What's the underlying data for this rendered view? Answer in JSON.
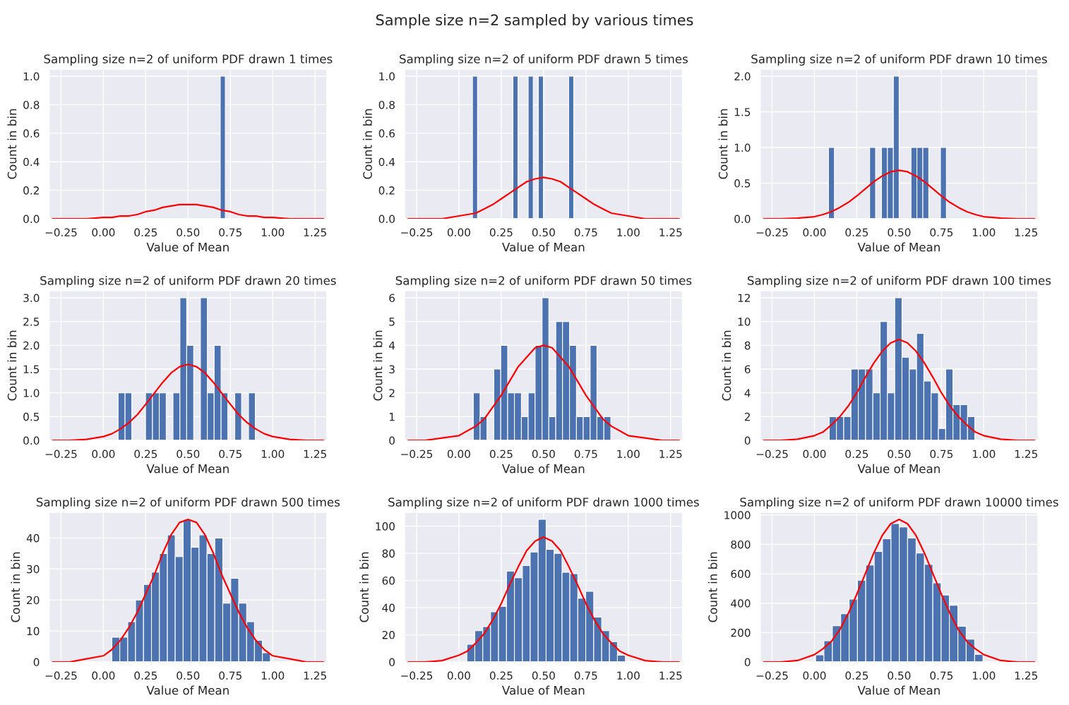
{
  "chart_data": [
    {
      "type": "histogram",
      "title": "Sampling size n=2 of uniform PDF drawn 1 times",
      "xlabel": "Value of Mean",
      "ylabel": "Count in bin",
      "annotations": [
        "Sample size n=2 sampled by various times"
      ],
      "grid": true,
      "color": "#4c72b0",
      "bins": [
        0.69,
        0.72
      ],
      "values": [
        1
      ],
      "series": [
        {
          "type": "line",
          "color": "#ff0000",
          "x": [
            -0.3,
            -0.2,
            -0.1,
            0,
            0.05,
            0.1,
            0.15,
            0.2,
            0.25,
            0.3,
            0.35,
            0.4,
            0.45,
            0.5,
            0.55,
            0.6,
            0.65,
            0.7,
            0.75,
            0.8,
            0.85,
            0.9,
            0.95,
            1,
            1.1,
            1.2,
            1.3
          ],
          "values": [
            0,
            0,
            0,
            0.01,
            0.01,
            0.02,
            0.02,
            0.03,
            0.05,
            0.06,
            0.08,
            0.09,
            0.1,
            0.1,
            0.1,
            0.09,
            0.08,
            0.06,
            0.05,
            0.03,
            0.02,
            0.02,
            0.01,
            0.01,
            0,
            0,
            0
          ]
        }
      ],
      "xlim": [
        -0.32,
        1.32
      ],
      "xticks": [
        {
          "value": -0.25,
          "label": "−0.25"
        },
        {
          "value": 0,
          "label": "0.00"
        },
        {
          "value": 0.25,
          "label": "0.25"
        },
        {
          "value": 0.5,
          "label": "0.50"
        },
        {
          "value": 0.75,
          "label": "0.75"
        },
        {
          "value": 1,
          "label": "1.00"
        },
        {
          "value": 1.25,
          "label": "1.25"
        }
      ],
      "ylim": [
        0,
        1.05
      ],
      "yticks": [
        {
          "value": 0,
          "label": "0.0"
        },
        {
          "value": 0.2,
          "label": "0.2"
        },
        {
          "value": 0.4,
          "label": "0.4"
        },
        {
          "value": 0.6,
          "label": "0.6"
        },
        {
          "value": 0.8,
          "label": "0.8"
        },
        {
          "value": 1,
          "label": "1.0"
        }
      ]
    },
    {
      "type": "histogram",
      "title": "Sampling size n=2 of uniform PDF drawn 5 times",
      "xlabel": "Value of Mean",
      "ylabel": "Count in bin",
      "grid": true,
      "color": "#4c72b0",
      "bins": [
        0.08,
        0.11,
        0.14,
        0.17,
        0.2,
        0.23,
        0.259,
        0.289,
        0.319,
        0.349,
        0.379,
        0.409,
        0.439,
        0.469,
        0.499,
        0.529,
        0.558,
        0.588,
        0.618,
        0.648,
        0.678
      ],
      "values": [
        1,
        0,
        0,
        0,
        0,
        0,
        0,
        0,
        1,
        0,
        0,
        1,
        0,
        1,
        0,
        0,
        0,
        0,
        0,
        1
      ],
      "series": [
        {
          "type": "line",
          "color": "#ff0000",
          "x": [
            -0.3,
            -0.2,
            -0.1,
            0,
            0.05,
            0.1,
            0.15,
            0.2,
            0.25,
            0.3,
            0.35,
            0.4,
            0.45,
            0.5,
            0.55,
            0.6,
            0.65,
            0.7,
            0.75,
            0.8,
            0.85,
            0.9,
            0.95,
            1,
            1.1,
            1.2,
            1.3
          ],
          "values": [
            0,
            0,
            0,
            0.02,
            0.03,
            0.04,
            0.07,
            0.1,
            0.14,
            0.18,
            0.22,
            0.26,
            0.28,
            0.29,
            0.28,
            0.26,
            0.22,
            0.18,
            0.14,
            0.1,
            0.07,
            0.04,
            0.03,
            0.02,
            0,
            0,
            0
          ]
        }
      ],
      "xlim": [
        -0.32,
        1.32
      ],
      "xticks": [
        {
          "value": -0.25,
          "label": "−0.25"
        },
        {
          "value": 0,
          "label": "0.00"
        },
        {
          "value": 0.25,
          "label": "0.25"
        },
        {
          "value": 0.5,
          "label": "0.50"
        },
        {
          "value": 0.75,
          "label": "0.75"
        },
        {
          "value": 1,
          "label": "1.00"
        },
        {
          "value": 1.25,
          "label": "1.25"
        }
      ],
      "ylim": [
        0,
        1.05
      ],
      "yticks": [
        {
          "value": 0,
          "label": "0.0"
        },
        {
          "value": 0.2,
          "label": "0.2"
        },
        {
          "value": 0.4,
          "label": "0.4"
        },
        {
          "value": 0.6,
          "label": "0.6"
        },
        {
          "value": 0.8,
          "label": "0.8"
        },
        {
          "value": 1,
          "label": "1.0"
        }
      ]
    },
    {
      "type": "histogram",
      "title": "Sampling size n=2 of uniform PDF drawn 10 times",
      "xlabel": "Value of Mean",
      "ylabel": "Count in bin",
      "grid": true,
      "color": "#4c72b0",
      "bins": [
        0.083,
        0.118,
        0.152,
        0.187,
        0.222,
        0.257,
        0.292,
        0.326,
        0.361,
        0.396,
        0.431,
        0.466,
        0.5,
        0.535,
        0.57,
        0.605,
        0.64,
        0.675,
        0.709,
        0.744,
        0.779
      ],
      "values": [
        1,
        0,
        0,
        0,
        0,
        0,
        0,
        1,
        0,
        1,
        1,
        2,
        0,
        0,
        1,
        1,
        1,
        0,
        0,
        1
      ],
      "series": [
        {
          "type": "line",
          "color": "#ff0000",
          "x": [
            -0.3,
            -0.2,
            -0.1,
            0,
            0.05,
            0.1,
            0.15,
            0.2,
            0.25,
            0.3,
            0.35,
            0.4,
            0.45,
            0.5,
            0.55,
            0.6,
            0.65,
            0.7,
            0.75,
            0.8,
            0.85,
            0.9,
            0.95,
            1,
            1.1,
            1.2,
            1.3
          ],
          "values": [
            0,
            0,
            0.01,
            0.03,
            0.06,
            0.1,
            0.16,
            0.23,
            0.32,
            0.42,
            0.52,
            0.6,
            0.66,
            0.68,
            0.66,
            0.6,
            0.52,
            0.42,
            0.32,
            0.23,
            0.16,
            0.1,
            0.06,
            0.03,
            0.01,
            0,
            0
          ]
        }
      ],
      "xlim": [
        -0.32,
        1.32
      ],
      "xticks": [
        {
          "value": -0.25,
          "label": "−0.25"
        },
        {
          "value": 0,
          "label": "0.00"
        },
        {
          "value": 0.25,
          "label": "0.25"
        },
        {
          "value": 0.5,
          "label": "0.50"
        },
        {
          "value": 0.75,
          "label": "0.75"
        },
        {
          "value": 1,
          "label": "1.00"
        },
        {
          "value": 1.25,
          "label": "1.25"
        }
      ],
      "ylim": [
        0,
        2.1
      ],
      "yticks": [
        {
          "value": 0,
          "label": "0.0"
        },
        {
          "value": 0.5,
          "label": "0.5"
        },
        {
          "value": 1,
          "label": "1.0"
        },
        {
          "value": 1.5,
          "label": "1.5"
        },
        {
          "value": 2,
          "label": "2.0"
        }
      ]
    },
    {
      "type": "histogram",
      "title": "Sampling size n=2 of uniform PDF drawn 20 times",
      "xlabel": "Value of Mean",
      "ylabel": "Count in bin",
      "grid": true,
      "color": "#4c72b0",
      "bins": [
        0.087,
        0.128,
        0.168,
        0.209,
        0.249,
        0.29,
        0.33,
        0.371,
        0.411,
        0.452,
        0.492,
        0.533,
        0.573,
        0.614,
        0.654,
        0.695,
        0.735,
        0.776,
        0.816,
        0.857,
        0.897
      ],
      "values": [
        1,
        1,
        0,
        0,
        1,
        1,
        1,
        0,
        1,
        3,
        2,
        0,
        3,
        1,
        2,
        1,
        0,
        1,
        0,
        1
      ],
      "series": [
        {
          "type": "line",
          "color": "#ff0000",
          "x": [
            -0.3,
            -0.2,
            -0.1,
            0,
            0.05,
            0.1,
            0.15,
            0.2,
            0.25,
            0.3,
            0.35,
            0.4,
            0.45,
            0.5,
            0.55,
            0.6,
            0.65,
            0.7,
            0.75,
            0.8,
            0.85,
            0.9,
            0.95,
            1,
            1.1,
            1.2,
            1.3
          ],
          "values": [
            0,
            0,
            0.02,
            0.08,
            0.14,
            0.24,
            0.37,
            0.54,
            0.76,
            0.99,
            1.22,
            1.42,
            1.55,
            1.6,
            1.55,
            1.42,
            1.22,
            0.99,
            0.76,
            0.54,
            0.37,
            0.24,
            0.14,
            0.08,
            0.02,
            0,
            0
          ]
        }
      ],
      "xlim": [
        -0.32,
        1.32
      ],
      "xticks": [
        {
          "value": -0.25,
          "label": "−0.25"
        },
        {
          "value": 0,
          "label": "0.00"
        },
        {
          "value": 0.25,
          "label": "0.25"
        },
        {
          "value": 0.5,
          "label": "0.50"
        },
        {
          "value": 0.75,
          "label": "0.75"
        },
        {
          "value": 1,
          "label": "1.00"
        },
        {
          "value": 1.25,
          "label": "1.25"
        }
      ],
      "ylim": [
        0,
        3.15
      ],
      "yticks": [
        {
          "value": 0,
          "label": "0.0"
        },
        {
          "value": 0.5,
          "label": "0.5"
        },
        {
          "value": 1,
          "label": "1.0"
        },
        {
          "value": 1.5,
          "label": "1.5"
        },
        {
          "value": 2,
          "label": "2.0"
        },
        {
          "value": 2.5,
          "label": "2.5"
        },
        {
          "value": 3,
          "label": "3.0"
        }
      ]
    },
    {
      "type": "histogram",
      "title": "Sampling size n=2 of uniform PDF drawn 50 times",
      "xlabel": "Value of Mean",
      "ylabel": "Count in bin",
      "grid": true,
      "color": "#4c72b0",
      "bins": [
        0.085,
        0.125,
        0.166,
        0.206,
        0.247,
        0.288,
        0.328,
        0.369,
        0.409,
        0.45,
        0.491,
        0.531,
        0.572,
        0.612,
        0.653,
        0.694,
        0.734,
        0.775,
        0.815,
        0.856,
        0.897
      ],
      "values": [
        2,
        1,
        0,
        3,
        4,
        2,
        2,
        1,
        2,
        4,
        6,
        1,
        5,
        5,
        4,
        1,
        1,
        4,
        1,
        1
      ],
      "series": [
        {
          "type": "line",
          "color": "#ff0000",
          "x": [
            -0.3,
            -0.2,
            -0.1,
            0,
            0.05,
            0.1,
            0.15,
            0.2,
            0.25,
            0.3,
            0.35,
            0.4,
            0.45,
            0.5,
            0.55,
            0.6,
            0.65,
            0.7,
            0.75,
            0.8,
            0.85,
            0.9,
            0.95,
            1,
            1.1,
            1.2,
            1.3
          ],
          "values": [
            0,
            0,
            0.1,
            0.2,
            0.4,
            0.6,
            0.9,
            1.4,
            1.9,
            2.5,
            3.1,
            3.5,
            3.9,
            4,
            3.9,
            3.5,
            3.1,
            2.5,
            1.9,
            1.4,
            0.9,
            0.6,
            0.4,
            0.2,
            0.1,
            0,
            0
          ]
        }
      ],
      "xlim": [
        -0.32,
        1.32
      ],
      "xticks": [
        {
          "value": -0.25,
          "label": "−0.25"
        },
        {
          "value": 0,
          "label": "0.00"
        },
        {
          "value": 0.25,
          "label": "0.25"
        },
        {
          "value": 0.5,
          "label": "0.50"
        },
        {
          "value": 0.75,
          "label": "0.75"
        },
        {
          "value": 1,
          "label": "1.00"
        },
        {
          "value": 1.25,
          "label": "1.25"
        }
      ],
      "ylim": [
        0,
        6.3
      ],
      "yticks": [
        0,
        1,
        2,
        3,
        4,
        5,
        6
      ]
    },
    {
      "type": "histogram",
      "title": "Sampling size n=2 of uniform PDF drawn 100 times",
      "xlabel": "Value of Mean",
      "ylabel": "Count in bin",
      "grid": true,
      "color": "#4c72b0",
      "bins": [
        0.087,
        0.13,
        0.173,
        0.216,
        0.259,
        0.302,
        0.345,
        0.388,
        0.431,
        0.474,
        0.517,
        0.56,
        0.603,
        0.646,
        0.689,
        0.732,
        0.775,
        0.818,
        0.861,
        0.904,
        0.947
      ],
      "values": [
        2,
        2,
        2,
        6,
        6,
        6,
        4,
        10,
        4,
        12,
        7,
        6,
        9,
        5,
        4,
        1,
        6,
        3,
        3,
        2
      ],
      "series": [
        {
          "type": "line",
          "color": "#ff0000",
          "x": [
            -0.3,
            -0.2,
            -0.1,
            0,
            0.05,
            0.1,
            0.15,
            0.2,
            0.25,
            0.3,
            0.35,
            0.4,
            0.45,
            0.5,
            0.55,
            0.6,
            0.65,
            0.7,
            0.75,
            0.8,
            0.85,
            0.9,
            0.95,
            1,
            1.1,
            1.2,
            1.3
          ],
          "values": [
            0,
            0,
            0.1,
            0.4,
            0.7,
            1.3,
            2,
            2.9,
            4,
            5.3,
            6.5,
            7.5,
            8.2,
            8.5,
            8.2,
            7.5,
            6.5,
            5.3,
            4,
            2.9,
            2,
            1.3,
            0.7,
            0.4,
            0.1,
            0,
            0
          ]
        }
      ],
      "xlim": [
        -0.32,
        1.32
      ],
      "xticks": [
        {
          "value": -0.25,
          "label": "−0.25"
        },
        {
          "value": 0,
          "label": "0.00"
        },
        {
          "value": 0.25,
          "label": "0.25"
        },
        {
          "value": 0.5,
          "label": "0.50"
        },
        {
          "value": 0.75,
          "label": "0.75"
        },
        {
          "value": 1,
          "label": "1.00"
        },
        {
          "value": 1.25,
          "label": "1.25"
        }
      ],
      "ylim": [
        0,
        12.6
      ],
      "yticks": [
        0,
        2,
        4,
        6,
        8,
        10,
        12
      ]
    },
    {
      "type": "histogram",
      "title": "Sampling size n=2 of uniform PDF drawn 500 times",
      "xlabel": "Value of Mean",
      "ylabel": "Count in bin",
      "grid": true,
      "color": "#4c72b0",
      "bins": [
        0.05,
        0.097,
        0.144,
        0.19,
        0.237,
        0.284,
        0.331,
        0.378,
        0.424,
        0.471,
        0.518,
        0.565,
        0.612,
        0.658,
        0.705,
        0.752,
        0.799,
        0.846,
        0.892,
        0.939,
        0.986
      ],
      "values": [
        8,
        8,
        13,
        20,
        25,
        29,
        35,
        41,
        34,
        46,
        37,
        41,
        35,
        40,
        19,
        27,
        19,
        13,
        7,
        3
      ],
      "series": [
        {
          "type": "line",
          "color": "#ff0000",
          "x": [
            -0.3,
            -0.2,
            -0.1,
            0,
            0.05,
            0.1,
            0.15,
            0.2,
            0.25,
            0.3,
            0.35,
            0.4,
            0.45,
            0.5,
            0.55,
            0.6,
            0.65,
            0.7,
            0.75,
            0.8,
            0.85,
            0.9,
            0.95,
            1,
            1.1,
            1.2,
            1.3
          ],
          "values": [
            0,
            0,
            1,
            2,
            4,
            7,
            11,
            16,
            22,
            28,
            35,
            41,
            45,
            46,
            45,
            41,
            35,
            28,
            22,
            16,
            11,
            7,
            4,
            2,
            1,
            0,
            0
          ]
        }
      ],
      "xlim": [
        -0.32,
        1.32
      ],
      "xticks": [
        {
          "value": -0.25,
          "label": "−0.25"
        },
        {
          "value": 0,
          "label": "0.00"
        },
        {
          "value": 0.25,
          "label": "0.25"
        },
        {
          "value": 0.5,
          "label": "0.50"
        },
        {
          "value": 0.75,
          "label": "0.75"
        },
        {
          "value": 1,
          "label": "1.00"
        },
        {
          "value": 1.25,
          "label": "1.25"
        }
      ],
      "ylim": [
        0,
        48.3
      ],
      "yticks": [
        0,
        10,
        20,
        30,
        40
      ]
    },
    {
      "type": "histogram",
      "title": "Sampling size n=2 of uniform PDF drawn 1000 times",
      "xlabel": "Value of Mean",
      "ylabel": "Count in bin",
      "grid": true,
      "color": "#4c72b0",
      "bins": [
        0.047,
        0.094,
        0.141,
        0.187,
        0.234,
        0.281,
        0.328,
        0.375,
        0.421,
        0.468,
        0.515,
        0.562,
        0.609,
        0.655,
        0.702,
        0.749,
        0.796,
        0.843,
        0.889,
        0.936,
        0.983
      ],
      "values": [
        13,
        23,
        26,
        37,
        41,
        67,
        62,
        71,
        81,
        105,
        83,
        80,
        66,
        65,
        47,
        52,
        33,
        23,
        15,
        5
      ],
      "series": [
        {
          "type": "line",
          "color": "#ff0000",
          "x": [
            -0.3,
            -0.2,
            -0.1,
            0,
            0.05,
            0.1,
            0.15,
            0.2,
            0.25,
            0.3,
            0.35,
            0.4,
            0.45,
            0.5,
            0.55,
            0.6,
            0.65,
            0.7,
            0.75,
            0.8,
            0.85,
            0.9,
            0.95,
            1,
            1.1,
            1.2,
            1.3
          ],
          "values": [
            0,
            0,
            1,
            5,
            8,
            14,
            21,
            31,
            43,
            57,
            70,
            82,
            89,
            92,
            89,
            82,
            70,
            57,
            43,
            31,
            21,
            14,
            8,
            5,
            1,
            0,
            0
          ]
        }
      ],
      "xlim": [
        -0.32,
        1.32
      ],
      "xticks": [
        {
          "value": -0.25,
          "label": "−0.25"
        },
        {
          "value": 0,
          "label": "0.00"
        },
        {
          "value": 0.25,
          "label": "0.25"
        },
        {
          "value": 0.5,
          "label": "0.50"
        },
        {
          "value": 0.75,
          "label": "0.75"
        },
        {
          "value": 1,
          "label": "1.00"
        },
        {
          "value": 1.25,
          "label": "1.25"
        }
      ],
      "ylim": [
        0,
        110.25
      ],
      "yticks": [
        0,
        20,
        40,
        60,
        80,
        100
      ]
    },
    {
      "type": "histogram",
      "title": "Sampling size n=2 of uniform PDF drawn 10000 times",
      "xlabel": "Value of Mean",
      "ylabel": "Count in bin",
      "grid": true,
      "color": "#4c72b0",
      "bins": [
        0.007,
        0.056,
        0.106,
        0.155,
        0.205,
        0.254,
        0.303,
        0.353,
        0.402,
        0.452,
        0.501,
        0.55,
        0.6,
        0.649,
        0.699,
        0.748,
        0.797,
        0.847,
        0.896,
        0.946,
        0.995
      ],
      "values": [
        49,
        144,
        246,
        328,
        428,
        556,
        659,
        752,
        838,
        942,
        919,
        843,
        741,
        664,
        538,
        456,
        386,
        243,
        155,
        52
      ],
      "series": [
        {
          "type": "line",
          "color": "#ff0000",
          "x": [
            -0.3,
            -0.2,
            -0.1,
            0,
            0.05,
            0.1,
            0.15,
            0.2,
            0.25,
            0.3,
            0.35,
            0.4,
            0.45,
            0.5,
            0.55,
            0.6,
            0.65,
            0.7,
            0.75,
            0.8,
            0.85,
            0.9,
            0.95,
            1,
            1.1,
            1.2,
            1.3
          ],
          "values": [
            0,
            0,
            10,
            50,
            90,
            140,
            220,
            330,
            460,
            600,
            740,
            860,
            940,
            970,
            940,
            860,
            740,
            600,
            460,
            330,
            220,
            140,
            90,
            50,
            10,
            0,
            0
          ]
        }
      ],
      "xlim": [
        -0.32,
        1.32
      ],
      "xticks": [
        {
          "value": -0.25,
          "label": "−0.25"
        },
        {
          "value": 0,
          "label": "0.00"
        },
        {
          "value": 0.25,
          "label": "0.25"
        },
        {
          "value": 0.5,
          "label": "0.50"
        },
        {
          "value": 0.75,
          "label": "0.75"
        },
        {
          "value": 1,
          "label": "1.00"
        },
        {
          "value": 1.25,
          "label": "1.25"
        }
      ],
      "ylim": [
        0,
        1018.5
      ],
      "yticks": [
        0,
        200,
        400,
        600,
        800,
        1000
      ]
    }
  ]
}
